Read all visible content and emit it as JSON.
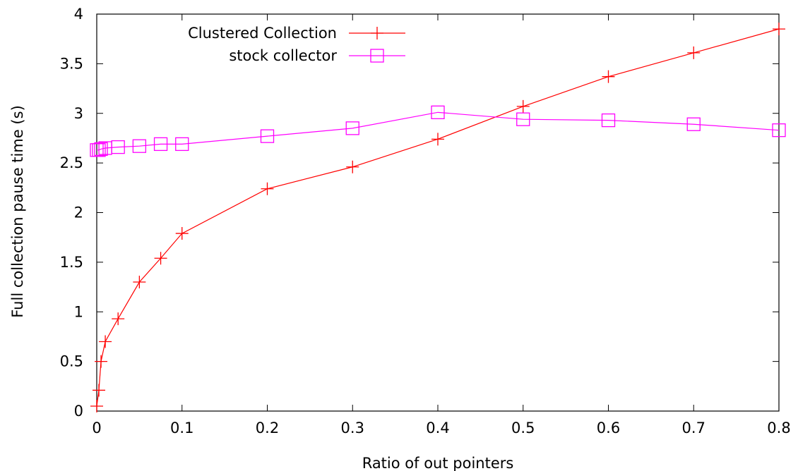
{
  "chart_data": {
    "type": "line",
    "title": "",
    "xlabel": "Ratio of out pointers",
    "ylabel": "Full collection pause time (s)",
    "xlim": [
      0,
      0.8
    ],
    "ylim": [
      0,
      4
    ],
    "x_ticks": [
      0,
      0.1,
      0.2,
      0.3,
      0.4,
      0.5,
      0.6,
      0.7,
      0.8
    ],
    "x_tick_labels": [
      "0",
      "0.1",
      "0.2",
      "0.3",
      "0.4",
      "0.5",
      "0.6",
      "0.7",
      "0.8"
    ],
    "y_ticks": [
      0,
      0.5,
      1,
      1.5,
      2,
      2.5,
      3,
      3.5,
      4
    ],
    "y_tick_labels": [
      "0",
      "0.5",
      "1",
      "1.5",
      "2",
      "2.5",
      "3",
      "3.5",
      "4"
    ],
    "grid": false,
    "legend_position": "top-left",
    "series": [
      {
        "name": "Clustered Collection",
        "color": "#ff0000",
        "marker": "plus",
        "x": [
          0,
          0.0025,
          0.005,
          0.01,
          0.025,
          0.05,
          0.075,
          0.1,
          0.2,
          0.3,
          0.4,
          0.5,
          0.6,
          0.7,
          0.8
        ],
        "y": [
          0.05,
          0.21,
          0.5,
          0.7,
          0.93,
          1.3,
          1.54,
          1.79,
          2.24,
          2.46,
          2.74,
          3.07,
          3.37,
          3.61,
          3.85
        ]
      },
      {
        "name": "stock collector",
        "color": "#ff00ff",
        "marker": "square",
        "x": [
          0,
          0.0025,
          0.005,
          0.01,
          0.025,
          0.05,
          0.075,
          0.1,
          0.2,
          0.3,
          0.4,
          0.5,
          0.6,
          0.7,
          0.8
        ],
        "y": [
          2.63,
          2.63,
          2.64,
          2.65,
          2.66,
          2.67,
          2.69,
          2.69,
          2.77,
          2.85,
          3.01,
          2.94,
          2.93,
          2.89,
          2.83
        ]
      }
    ]
  }
}
